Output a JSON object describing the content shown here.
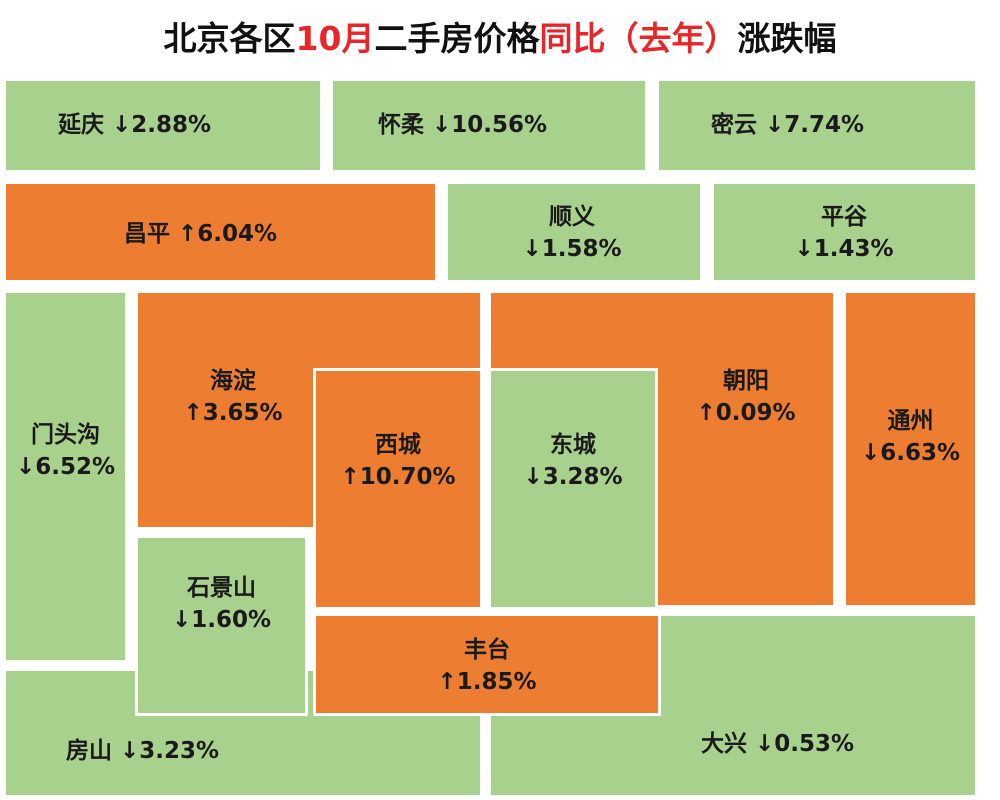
{
  "title": {
    "parts": [
      "北京各区",
      "10月",
      "二手房价格",
      "同比",
      "（去年）",
      "涨跌幅"
    ]
  },
  "districts": [
    {
      "name": "房山",
      "change": "↓3.23%"
    },
    {
      "name": "大兴",
      "change": "↓0.53%"
    },
    {
      "name": "海淀",
      "change": "↑3.65%"
    },
    {
      "name": "朝阳",
      "change": "↑0.09%"
    },
    {
      "name": "延庆",
      "change": "↓2.88%"
    },
    {
      "name": "怀柔",
      "change": "↓10.56%"
    },
    {
      "name": "密云",
      "change": "↓7.74%"
    },
    {
      "name": "昌平",
      "change": "↑6.04%"
    },
    {
      "name": "顺义",
      "change": "↓1.58%"
    },
    {
      "name": "平谷",
      "change": "↓1.43%"
    },
    {
      "name": "门头沟",
      "change": "↓6.52%"
    },
    {
      "name": "西城",
      "change": "↑10.70%"
    },
    {
      "name": "东城",
      "change": "↓3.28%"
    },
    {
      "name": "通州",
      "change": "↓6.63%"
    },
    {
      "name": "石景山",
      "change": "↓1.60%"
    },
    {
      "name": "丰台",
      "change": "↑1.85%"
    }
  ]
}
